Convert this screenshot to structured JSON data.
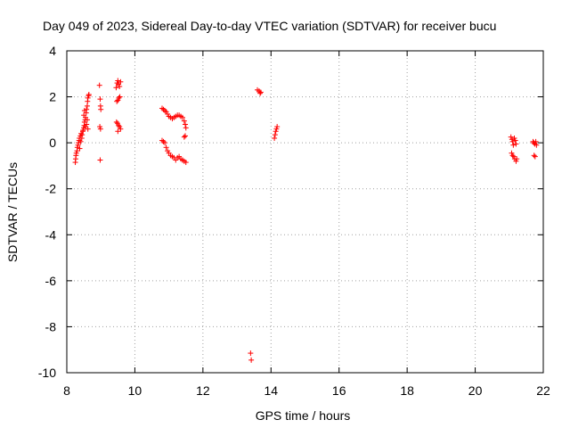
{
  "chart_data": {
    "type": "scatter",
    "title": "Day 049 of 2023, Sidereal Day-to-day VTEC variation (SDTVAR) for receiver bucu",
    "xlabel": "GPS time / hours",
    "ylabel": "SDTVAR / TECUs",
    "xlim": [
      8,
      22
    ],
    "ylim": [
      -10,
      4
    ],
    "xticks": [
      "8",
      "10",
      "12",
      "14",
      "16",
      "18",
      "20",
      "22"
    ],
    "yticks": [
      "4",
      "2",
      "0",
      "-2",
      "-4",
      "-6",
      "-8",
      "-10"
    ],
    "grid": true,
    "marker": "plus",
    "colors": {
      "series": "#ff0000",
      "grid": "#a0a0a0",
      "axis": "#000000"
    },
    "series": [
      {
        "name": "SDTVAR",
        "points": [
          [
            8.25,
            -0.85
          ],
          [
            8.26,
            -0.7
          ],
          [
            8.27,
            -0.55
          ],
          [
            8.28,
            -0.45
          ],
          [
            8.3,
            -0.35
          ],
          [
            8.31,
            -0.2
          ],
          [
            8.33,
            -0.1
          ],
          [
            8.34,
            0.0
          ],
          [
            8.36,
            0.1
          ],
          [
            8.37,
            0.2
          ],
          [
            8.38,
            -0.25
          ],
          [
            8.4,
            0.3
          ],
          [
            8.41,
            0.05
          ],
          [
            8.42,
            0.4
          ],
          [
            8.44,
            0.2
          ],
          [
            8.45,
            0.35
          ],
          [
            8.47,
            0.5
          ],
          [
            8.48,
            0.55
          ],
          [
            8.5,
            0.65
          ],
          [
            8.51,
            0.75
          ],
          [
            8.52,
            0.9
          ],
          [
            8.54,
            1.0
          ],
          [
            8.55,
            1.1
          ],
          [
            8.57,
            1.3
          ],
          [
            8.58,
            1.45
          ],
          [
            8.6,
            1.6
          ],
          [
            8.61,
            1.8
          ],
          [
            8.62,
            1.95
          ],
          [
            8.64,
            2.05
          ],
          [
            8.65,
            2.1
          ],
          [
            8.5,
            1.2
          ],
          [
            8.52,
            1.4
          ],
          [
            8.55,
            0.7
          ],
          [
            8.58,
            0.8
          ],
          [
            8.6,
            1.0
          ],
          [
            8.62,
            0.6
          ],
          [
            8.96,
            2.5
          ],
          [
            8.98,
            1.9
          ],
          [
            8.99,
            1.6
          ],
          [
            9.0,
            1.45
          ],
          [
            8.97,
            0.7
          ],
          [
            8.99,
            0.6
          ],
          [
            8.98,
            -0.75
          ],
          [
            9.45,
            2.4
          ],
          [
            9.48,
            2.6
          ],
          [
            9.5,
            2.7
          ],
          [
            9.52,
            2.55
          ],
          [
            9.55,
            2.45
          ],
          [
            9.58,
            2.65
          ],
          [
            9.47,
            1.8
          ],
          [
            9.5,
            1.85
          ],
          [
            9.53,
            1.95
          ],
          [
            9.56,
            2.0
          ],
          [
            9.46,
            0.9
          ],
          [
            9.49,
            0.85
          ],
          [
            9.52,
            0.75
          ],
          [
            9.55,
            0.7
          ],
          [
            9.58,
            0.6
          ],
          [
            9.5,
            0.5
          ],
          [
            10.8,
            1.5
          ],
          [
            10.84,
            1.45
          ],
          [
            10.88,
            1.4
          ],
          [
            10.92,
            1.35
          ],
          [
            10.96,
            1.25
          ],
          [
            11.0,
            1.15
          ],
          [
            11.05,
            1.1
          ],
          [
            11.1,
            1.05
          ],
          [
            11.15,
            1.1
          ],
          [
            11.2,
            1.15
          ],
          [
            11.25,
            1.2
          ],
          [
            11.3,
            1.2
          ],
          [
            11.35,
            1.15
          ],
          [
            11.4,
            1.1
          ],
          [
            11.45,
            0.95
          ],
          [
            11.48,
            0.8
          ],
          [
            11.5,
            0.65
          ],
          [
            11.48,
            0.3
          ],
          [
            11.45,
            0.25
          ],
          [
            10.8,
            0.1
          ],
          [
            10.84,
            0.05
          ],
          [
            10.88,
            0.0
          ],
          [
            10.92,
            -0.2
          ],
          [
            10.96,
            -0.35
          ],
          [
            11.0,
            -0.45
          ],
          [
            11.05,
            -0.55
          ],
          [
            11.1,
            -0.6
          ],
          [
            11.15,
            -0.65
          ],
          [
            11.2,
            -0.75
          ],
          [
            11.25,
            -0.65
          ],
          [
            11.3,
            -0.6
          ],
          [
            11.35,
            -0.7
          ],
          [
            11.4,
            -0.75
          ],
          [
            11.45,
            -0.8
          ],
          [
            11.5,
            -0.85
          ],
          [
            13.6,
            2.3
          ],
          [
            13.65,
            2.25
          ],
          [
            13.7,
            2.2
          ],
          [
            13.68,
            2.15
          ],
          [
            14.1,
            0.2
          ],
          [
            14.12,
            0.35
          ],
          [
            14.14,
            0.5
          ],
          [
            14.16,
            0.6
          ],
          [
            14.18,
            0.7
          ],
          [
            13.4,
            -9.15
          ],
          [
            13.42,
            -9.45
          ],
          [
            21.05,
            0.25
          ],
          [
            21.08,
            0.15
          ],
          [
            21.1,
            0.05
          ],
          [
            21.12,
            -0.1
          ],
          [
            21.15,
            0.2
          ],
          [
            21.18,
            0.1
          ],
          [
            21.2,
            -0.05
          ],
          [
            21.07,
            -0.45
          ],
          [
            21.1,
            -0.55
          ],
          [
            21.13,
            -0.6
          ],
          [
            21.16,
            -0.7
          ],
          [
            21.2,
            -0.8
          ],
          [
            21.22,
            -0.7
          ],
          [
            21.7,
            0.05
          ],
          [
            21.72,
            0.0
          ],
          [
            21.75,
            -0.05
          ],
          [
            21.78,
            0.05
          ],
          [
            21.8,
            -0.1
          ],
          [
            21.73,
            -0.55
          ],
          [
            21.76,
            -0.6
          ]
        ]
      }
    ]
  }
}
